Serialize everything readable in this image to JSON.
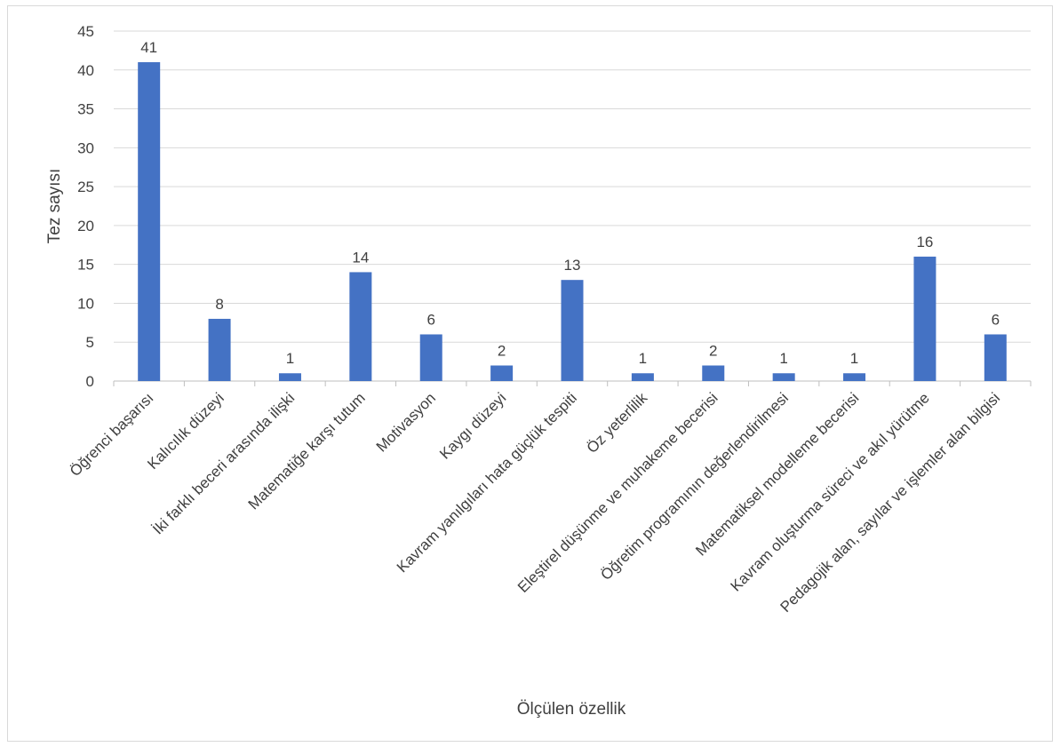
{
  "chart_data": {
    "type": "bar",
    "title": "",
    "xlabel": "Ölçülen özellik",
    "ylabel": "Tez sayısı",
    "ylim": [
      0,
      45
    ],
    "ytick_step": 5,
    "grid": true,
    "legend": "none",
    "bar_color": "#4472c4",
    "categories": [
      "Öğrenci başarısı",
      "Kalıcılık düzeyi",
      "İki farklı beceri arasında ilişki",
      "Matematiğe karşı tutum",
      "Motivasyon",
      "Kaygı düzeyi",
      "Kavram yanılgıları hata güçlük tespiti",
      "Öz yeterlilik",
      "Eleştirel düşünme ve muhakeme becerisi",
      "Öğretim programının değerlendirilmesi",
      "Matematiksel modelleme becerisi",
      "Kavram oluşturma süreci ve akıl yürütme",
      "Pedagojik alan, sayılar ve işlemler alan bilgisi"
    ],
    "values": [
      41,
      8,
      1,
      14,
      6,
      2,
      13,
      1,
      2,
      1,
      1,
      16,
      6
    ]
  }
}
